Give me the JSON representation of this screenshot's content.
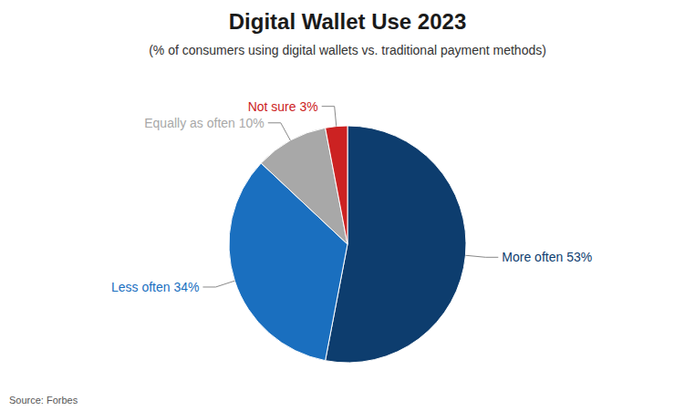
{
  "chart_data": {
    "type": "pie",
    "title": "Digital Wallet Use 2023",
    "subtitle": "(% of consumers using digital wallets vs. traditional payment methods)",
    "values": [
      53,
      34,
      10,
      3
    ],
    "value_labels": [
      "More often 53%",
      "Less often 34%",
      "Equally as often 10%",
      "Not sure 3%"
    ],
    "colors": [
      "#0d3d6e",
      "#1a6fbf",
      "#a8a8a8",
      "#cc2222"
    ],
    "data_labels": true,
    "source": "Source: Forbes"
  }
}
